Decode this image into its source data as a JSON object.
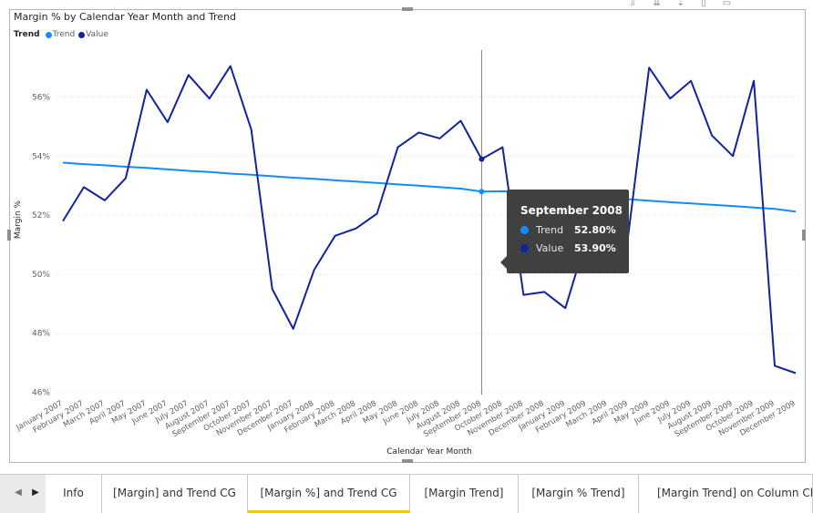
{
  "visual": {
    "title": "Margin % by Calendar Year Month and Trend",
    "legend_title": "Trend",
    "legend_items": [
      {
        "label": "Trend",
        "color": "#118dff"
      },
      {
        "label": "Value",
        "color": "#12239e"
      }
    ]
  },
  "chart_data": {
    "type": "line",
    "xlabel": "Calendar Year Month",
    "ylabel": "Margin %",
    "ylim": [
      45.8,
      57.9
    ],
    "yticks": [
      46,
      48,
      50,
      52,
      54,
      56
    ],
    "ytick_labels": [
      "46%",
      "48%",
      "50%",
      "52%",
      "54%",
      "56%"
    ],
    "grid": true,
    "legend_position": "top-left",
    "categories": [
      "January 2007",
      "February 2007",
      "March 2007",
      "April 2007",
      "May 2007",
      "June 2007",
      "July 2007",
      "August 2007",
      "September 2007",
      "October 2007",
      "November 2007",
      "December 2007",
      "January 2008",
      "February 2008",
      "March 2008",
      "April 2008",
      "May 2008",
      "June 2008",
      "July 2008",
      "August 2008",
      "September 2008",
      "October 2008",
      "November 2008",
      "December 2008",
      "January 2009",
      "February 2009",
      "March 2009",
      "April 2009",
      "May 2009",
      "June 2009",
      "July 2009",
      "August 2009",
      "September 2009",
      "October 2009",
      "November 2009",
      "December 2009"
    ],
    "series": [
      {
        "name": "Trend",
        "color": "#118dff",
        "values": [
          53.78,
          53.73,
          53.69,
          53.64,
          53.6,
          53.55,
          53.5,
          53.46,
          53.41,
          53.37,
          53.32,
          53.27,
          53.23,
          53.18,
          53.14,
          53.09,
          53.04,
          53.0,
          52.95,
          52.9,
          52.8,
          52.81,
          52.77,
          52.72,
          52.67,
          52.63,
          52.58,
          52.54,
          52.49,
          52.44,
          52.4,
          52.35,
          52.31,
          52.26,
          52.21,
          52.12
        ]
      },
      {
        "name": "Value",
        "color": "#12239e",
        "values": [
          51.8,
          52.95,
          52.5,
          53.25,
          56.25,
          55.15,
          56.75,
          55.95,
          57.05,
          54.9,
          49.5,
          48.15,
          50.15,
          51.3,
          51.55,
          52.05,
          54.3,
          54.8,
          54.6,
          55.2,
          53.9,
          54.3,
          49.3,
          49.4,
          48.85,
          51.2,
          51.0,
          51.3,
          57.0,
          55.95,
          56.55,
          54.7,
          54.0,
          56.55,
          46.9,
          46.65
        ]
      }
    ],
    "tooltip": {
      "title": "September 2008",
      "rows": [
        {
          "label": "Trend",
          "value": "52.80%",
          "color": "#118dff"
        },
        {
          "label": "Value",
          "value": "53.90%",
          "color": "#12239e"
        }
      ]
    },
    "highlight_index": 20
  },
  "tabs": [
    {
      "label": "Info",
      "active": false
    },
    {
      "label": "[Margin] and Trend CG",
      "active": false
    },
    {
      "label": "[Margin %] and Trend CG",
      "active": true
    },
    {
      "label": "[Margin Trend]",
      "active": false
    },
    {
      "label": "[Margin % Trend]",
      "active": false
    },
    {
      "label": "[Margin Trend] on Column Chart",
      "active": false
    }
  ],
  "nav": {
    "prev": "◀",
    "next": "▶"
  },
  "top_icons": [
    "drill-down-icon",
    "expand-all-icon",
    "expand-next-icon",
    "pin-icon",
    "focus-mode-icon"
  ]
}
